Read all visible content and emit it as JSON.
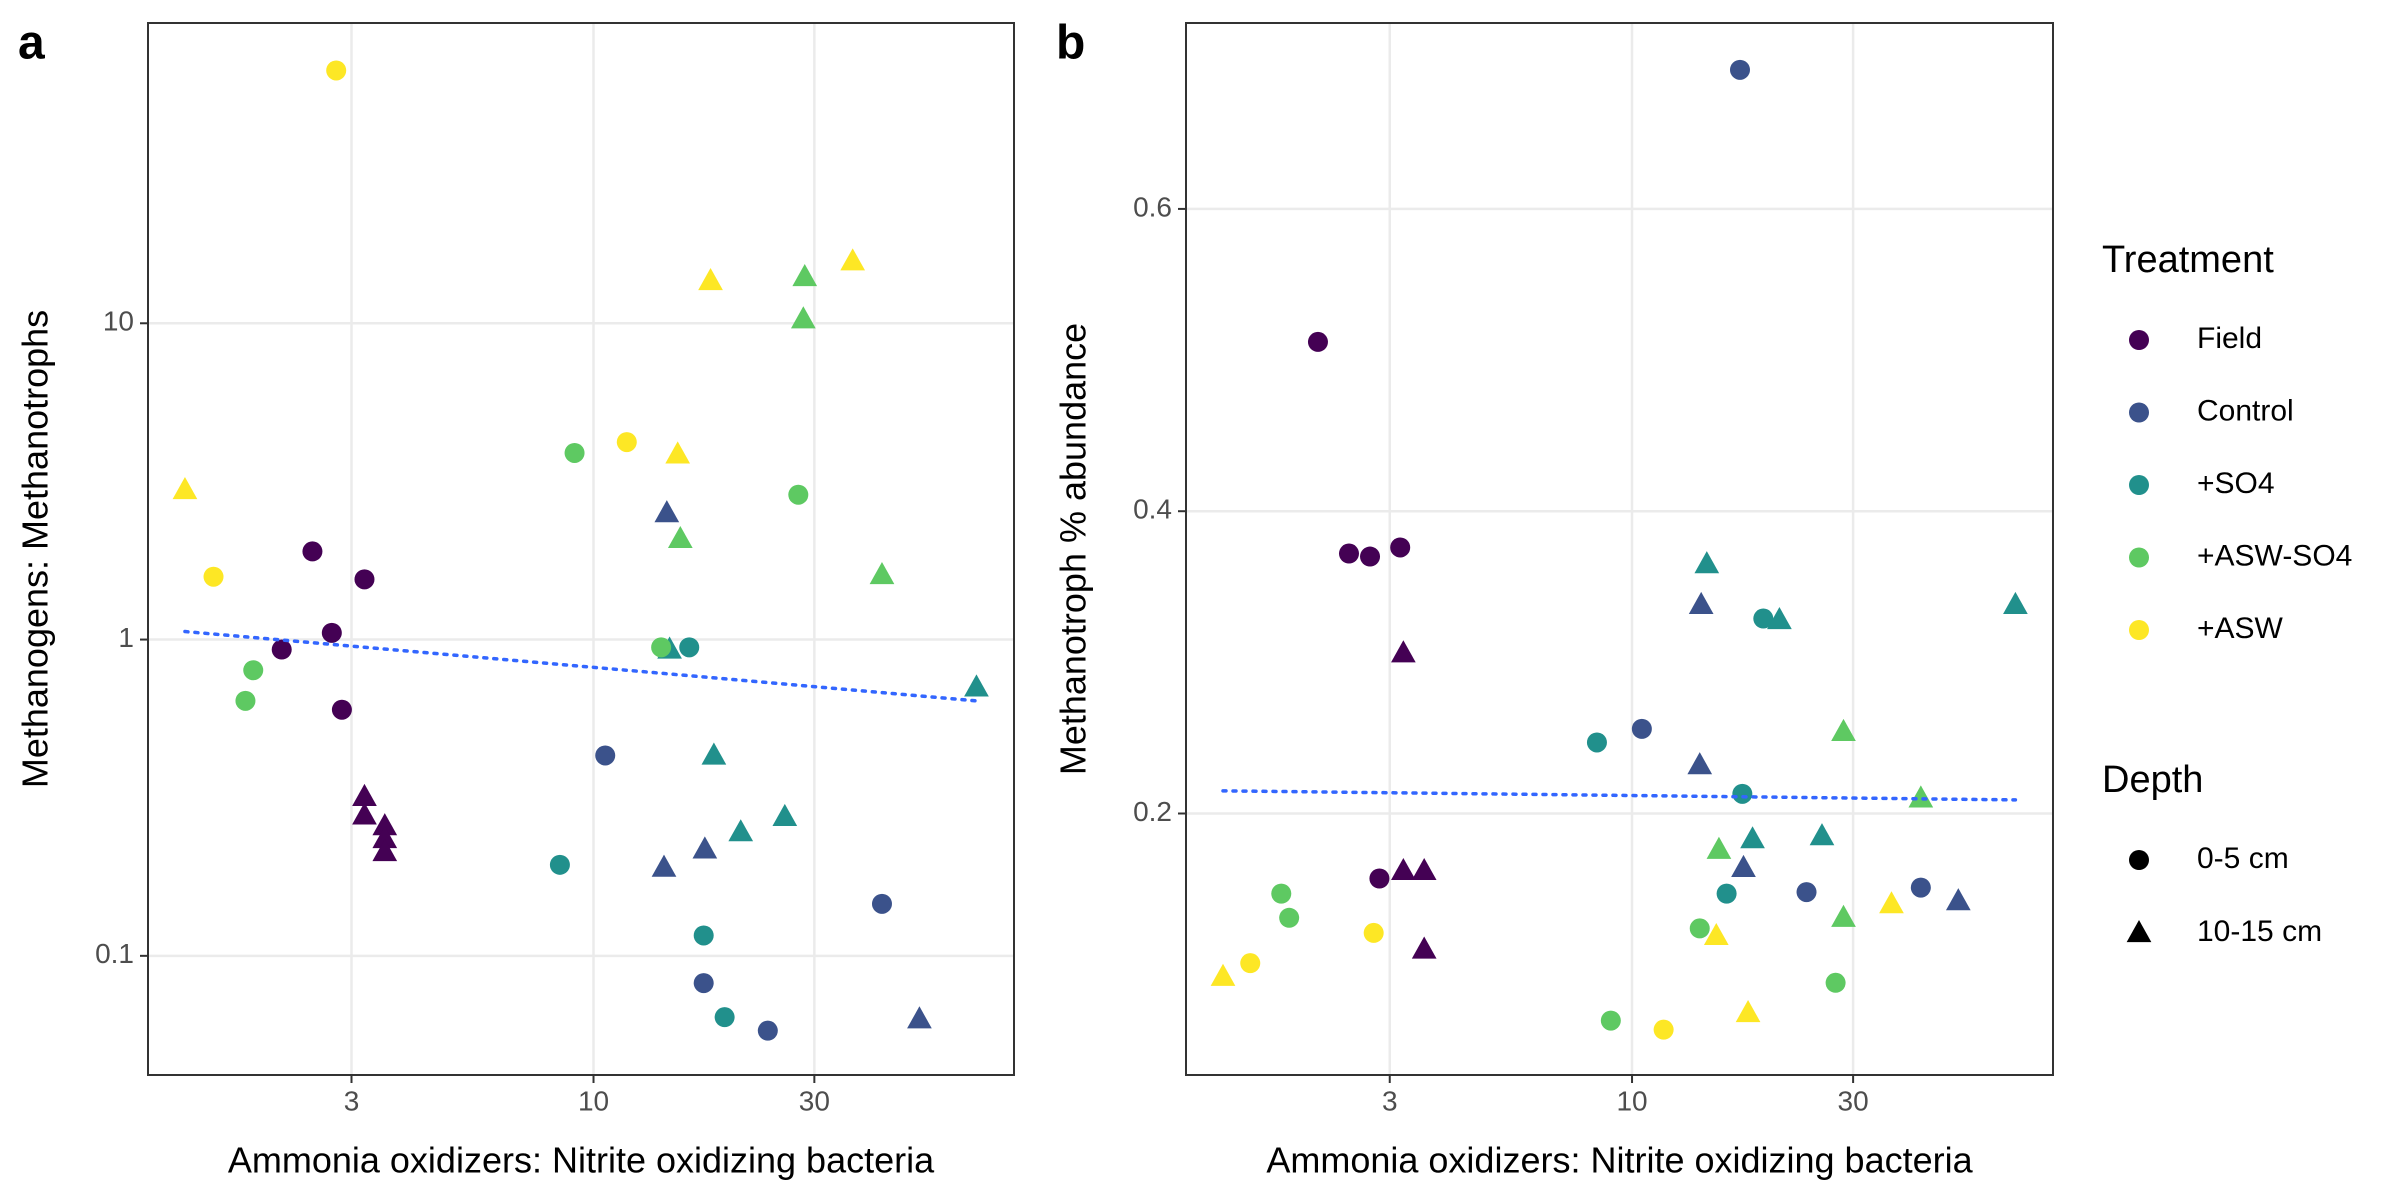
{
  "chart_data": [
    {
      "type": "scatter",
      "panel": "a",
      "x_label": "Ammonia oxidizers: Nitrite oxidizing bacteria",
      "y_label": "Methanogens: Methanotrophs",
      "log_x": true,
      "log_y": true,
      "grid": true,
      "xlim": [
        1.09,
        81
      ],
      "ylim": [
        0.042,
        89
      ],
      "xticks": [
        3,
        10,
        30
      ],
      "yticks": [
        0.1,
        1,
        10
      ],
      "series": [
        {
          "name": "Field",
          "depth": "0-5 cm",
          "x": [
            2.12,
            2.47,
            2.72,
            2.86,
            3.2
          ],
          "values": [
            0.93,
            1.9,
            1.05,
            0.6,
            1.55
          ]
        },
        {
          "name": "Field",
          "depth": "10-15 cm",
          "x": [
            3.2,
            3.2,
            3.54,
            3.54,
            3.54
          ],
          "values": [
            0.318,
            0.278,
            0.257,
            0.234,
            0.213
          ]
        },
        {
          "name": "Control",
          "depth": "0-5 cm",
          "x": [
            10.6,
            17.3,
            23.8,
            42
          ],
          "values": [
            0.43,
            0.082,
            0.058,
            0.146
          ]
        },
        {
          "name": "Control",
          "depth": "10-15 cm",
          "x": [
            14.4,
            14.2,
            17.4,
            50.6
          ],
          "values": [
            2.51,
            0.19,
            0.217,
            0.063
          ]
        },
        {
          "name": "+SO4",
          "depth": "0-5 cm",
          "x": [
            8.46,
            16.1,
            17.3,
            19.2
          ],
          "values": [
            0.194,
            0.945,
            0.116,
            0.064
          ]
        },
        {
          "name": "+SO4",
          "depth": "10-15 cm",
          "x": [
            14.6,
            18.2,
            20.8,
            25.9,
            67.2
          ],
          "values": [
            0.93,
            0.43,
            0.246,
            0.275,
            0.706
          ]
        },
        {
          "name": "+ASW-SO4",
          "depth": "0-5 cm",
          "x": [
            1.77,
            1.84,
            9.1,
            14.0,
            27.7
          ],
          "values": [
            0.64,
            0.8,
            3.89,
            0.945,
            2.87
          ]
        },
        {
          "name": "+ASW-SO4",
          "depth": "10-15 cm",
          "x": [
            15.4,
            28.6,
            28.4,
            42
          ],
          "values": [
            2.08,
            14.0,
            10.3,
            1.6
          ]
        },
        {
          "name": "+ASW",
          "depth": "0-5 cm",
          "x": [
            1.51,
            2.78,
            11.8
          ],
          "values": [
            1.58,
            63,
            4.21
          ]
        },
        {
          "name": "+ASW",
          "depth": "10-15 cm",
          "x": [
            1.31,
            15.2,
            17.9,
            36.3
          ],
          "values": [
            2.97,
            3.85,
            13.6,
            15.7
          ]
        }
      ],
      "trend": {
        "color": "#3366ff",
        "x": [
          1.31,
          67.2
        ],
        "values": [
          1.06,
          0.64
        ]
      }
    },
    {
      "type": "scatter",
      "panel": "b",
      "x_label": "Ammonia oxidizers: Nitrite oxidizing bacteria",
      "y_label": "Methanotroph % abundance",
      "log_x": true,
      "log_y": false,
      "grid": true,
      "xlim": [
        1.09,
        81
      ],
      "ylim": [
        0.027,
        0.723
      ],
      "xticks": [
        3,
        10,
        30
      ],
      "yticks": [
        0.2,
        0.4,
        0.6
      ],
      "series": [
        {
          "name": "Field",
          "depth": "0-5 cm",
          "x": [
            2.1,
            2.45,
            2.72,
            3.16,
            2.85
          ],
          "values": [
            0.512,
            0.372,
            0.37,
            0.376,
            0.157
          ]
        },
        {
          "name": "Field",
          "depth": "10-15 cm",
          "x": [
            3.21,
            3.21,
            3.56,
            3.56
          ],
          "values": [
            0.306,
            0.162,
            0.162,
            0.11
          ]
        },
        {
          "name": "Control",
          "depth": "0-5 cm",
          "x": [
            10.5,
            17.1,
            23.8,
            42
          ],
          "values": [
            0.256,
            0.692,
            0.148,
            0.151
          ]
        },
        {
          "name": "Control",
          "depth": "10-15 cm",
          "x": [
            14.1,
            14.0,
            17.4,
            50.6
          ],
          "values": [
            0.338,
            0.232,
            0.164,
            0.142
          ]
        },
        {
          "name": "+SO4",
          "depth": "0-5 cm",
          "x": [
            8.4,
            16.0,
            17.3,
            19.2
          ],
          "values": [
            0.247,
            0.147,
            0.213,
            0.329
          ]
        },
        {
          "name": "+SO4",
          "depth": "10-15 cm",
          "x": [
            14.5,
            18.2,
            20.8,
            25.7,
            67.2
          ],
          "values": [
            0.365,
            0.183,
            0.328,
            0.185,
            0.338
          ]
        },
        {
          "name": "+ASW-SO4",
          "depth": "0-5 cm",
          "x": [
            1.75,
            1.82,
            9.0,
            14.0,
            27.5
          ],
          "values": [
            0.147,
            0.131,
            0.063,
            0.124,
            0.088
          ]
        },
        {
          "name": "+ASW-SO4",
          "depth": "10-15 cm",
          "x": [
            15.4,
            28.6,
            28.6,
            42
          ],
          "values": [
            0.176,
            0.254,
            0.131,
            0.21
          ]
        },
        {
          "name": "+ASW",
          "depth": "0-5 cm",
          "x": [
            1.5,
            2.77,
            11.7
          ],
          "values": [
            0.101,
            0.121,
            0.057
          ]
        },
        {
          "name": "+ASW",
          "depth": "10-15 cm",
          "x": [
            1.31,
            15.2,
            17.8,
            36.3
          ],
          "values": [
            0.092,
            0.119,
            0.068,
            0.14
          ]
        }
      ],
      "trend": {
        "color": "#3366ff",
        "x": [
          1.31,
          67.2
        ],
        "values": [
          0.215,
          0.209
        ]
      }
    }
  ],
  "legend": {
    "treatment": {
      "title": "Treatment",
      "entries": [
        {
          "name": "Field",
          "color": "#440154"
        },
        {
          "name": "Control",
          "color": "#3b528b"
        },
        {
          "name": "+SO4",
          "color": "#21908c"
        },
        {
          "name": "+ASW-SO4",
          "color": "#5ec962"
        },
        {
          "name": "+ASW",
          "color": "#fde725"
        }
      ]
    },
    "depth": {
      "title": "Depth",
      "entries": [
        {
          "name": "0-5 cm",
          "marker": "circle"
        },
        {
          "name": "10-15 cm",
          "marker": "triangle"
        }
      ]
    }
  }
}
